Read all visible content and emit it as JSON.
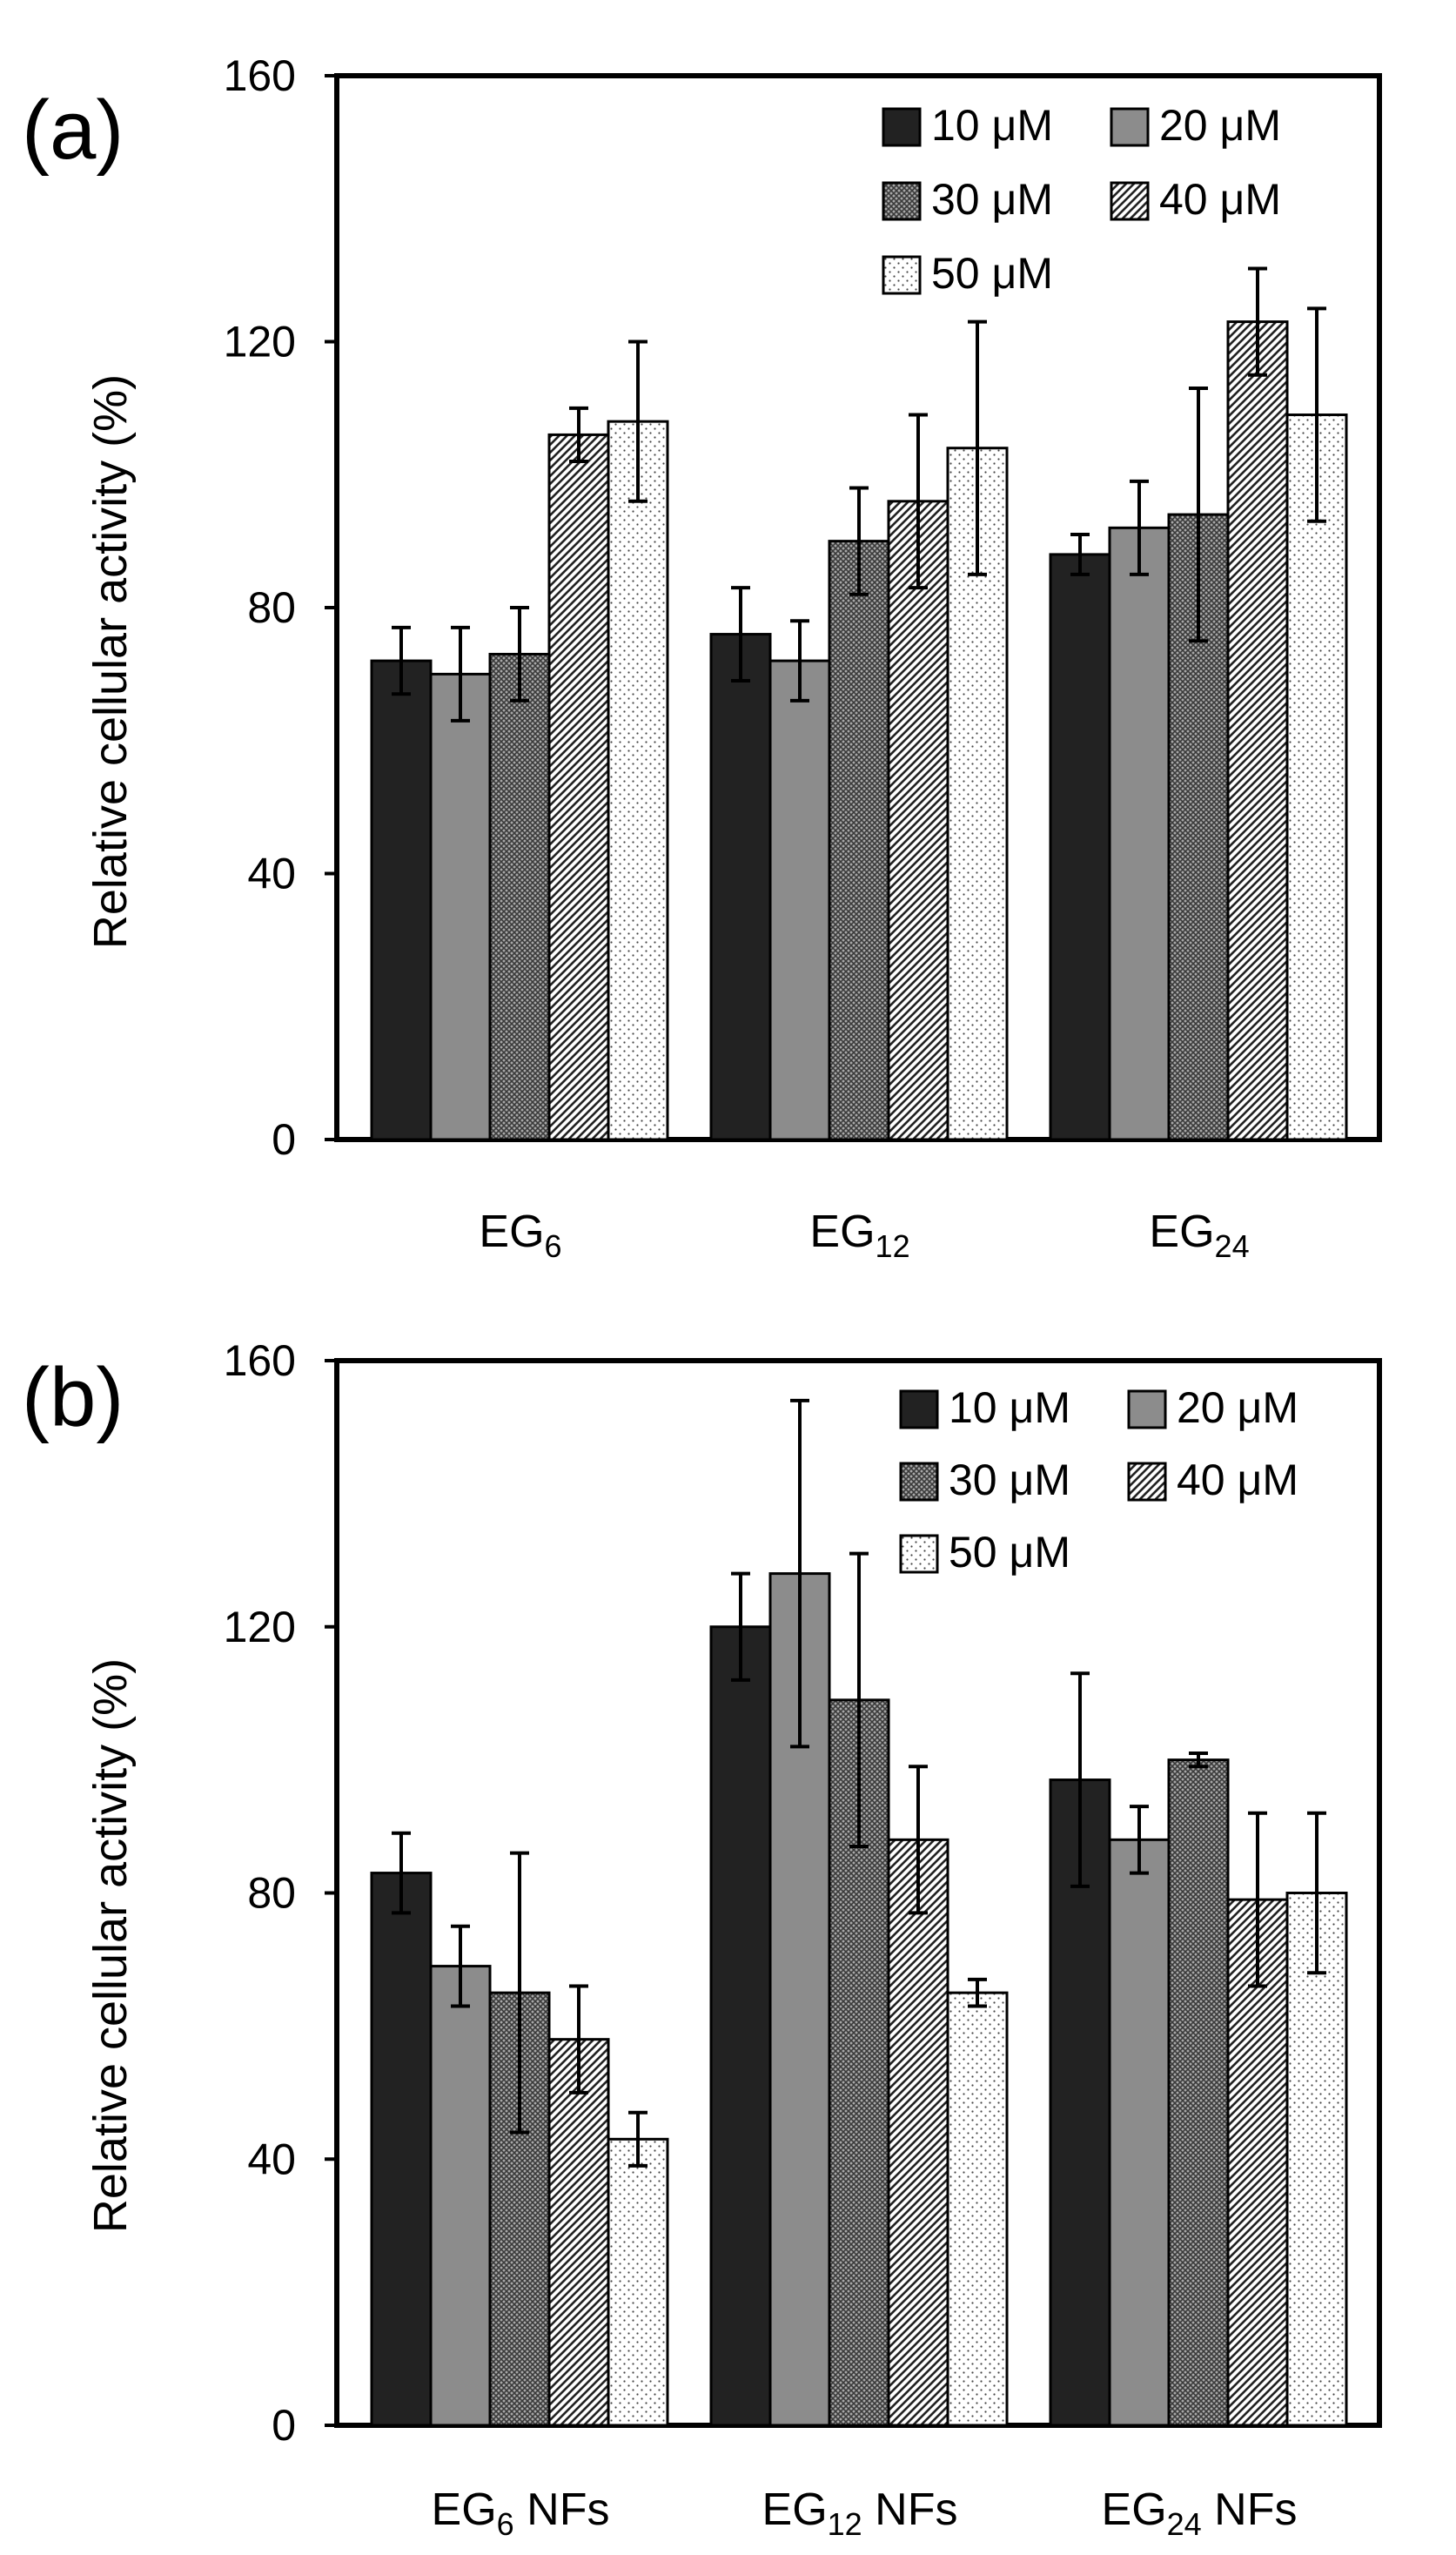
{
  "chart_data": [
    {
      "type": "bar",
      "panel_label": "(a)",
      "ylabel": "Relative cellular activity (%)",
      "ylim": [
        0,
        160
      ],
      "yticks": [
        "0",
        "40",
        "80",
        "120",
        "160"
      ],
      "ytick_values": [
        0,
        40,
        80,
        120,
        160
      ],
      "categories": [
        {
          "main": "EG",
          "sub": "6",
          "suffix": ""
        },
        {
          "main": "EG",
          "sub": "12",
          "suffix": ""
        },
        {
          "main": "EG",
          "sub": "24",
          "suffix": ""
        }
      ],
      "series": [
        {
          "name": "10 μM",
          "pattern": "black",
          "values": [
            72,
            76,
            88
          ],
          "errors": [
            5,
            7,
            3
          ]
        },
        {
          "name": "20 μM",
          "pattern": "gray",
          "values": [
            70,
            72,
            92
          ],
          "errors": [
            7,
            6,
            7
          ]
        },
        {
          "name": "30 μM",
          "pattern": "cross",
          "values": [
            73,
            90,
            94
          ],
          "errors": [
            7,
            8,
            19
          ]
        },
        {
          "name": "40 μM",
          "pattern": "diag",
          "values": [
            106,
            96,
            123
          ],
          "errors": [
            4,
            13,
            8
          ]
        },
        {
          "name": "50 μM",
          "pattern": "dots",
          "values": [
            108,
            104,
            109
          ],
          "errors": [
            12,
            19,
            16
          ]
        }
      ],
      "legend_location": "top-right"
    },
    {
      "type": "bar",
      "panel_label": "(b)",
      "ylabel": "Relative cellular activity (%)",
      "ylim": [
        0,
        160
      ],
      "yticks": [
        "0",
        "40",
        "80",
        "120",
        "160"
      ],
      "ytick_values": [
        0,
        40,
        80,
        120,
        160
      ],
      "categories": [
        {
          "main": "EG",
          "sub": "6",
          "suffix": " NFs"
        },
        {
          "main": "EG",
          "sub": "12",
          "suffix": " NFs"
        },
        {
          "main": "EG",
          "sub": "24",
          "suffix": " NFs"
        }
      ],
      "series": [
        {
          "name": "10 μM",
          "pattern": "black",
          "values": [
            83,
            120,
            97
          ],
          "errors": [
            6,
            8,
            16
          ]
        },
        {
          "name": "20 μM",
          "pattern": "gray",
          "values": [
            69,
            128,
            88
          ],
          "errors": [
            6,
            26,
            5
          ]
        },
        {
          "name": "30 μM",
          "pattern": "cross",
          "values": [
            65,
            109,
            100
          ],
          "errors": [
            21,
            22,
            1
          ]
        },
        {
          "name": "40 μM",
          "pattern": "diag",
          "values": [
            58,
            88,
            79
          ],
          "errors": [
            8,
            11,
            13
          ]
        },
        {
          "name": "50 μM",
          "pattern": "dots",
          "values": [
            43,
            65,
            80
          ],
          "errors": [
            4,
            2,
            12
          ]
        }
      ],
      "legend_location": "top-right"
    }
  ]
}
